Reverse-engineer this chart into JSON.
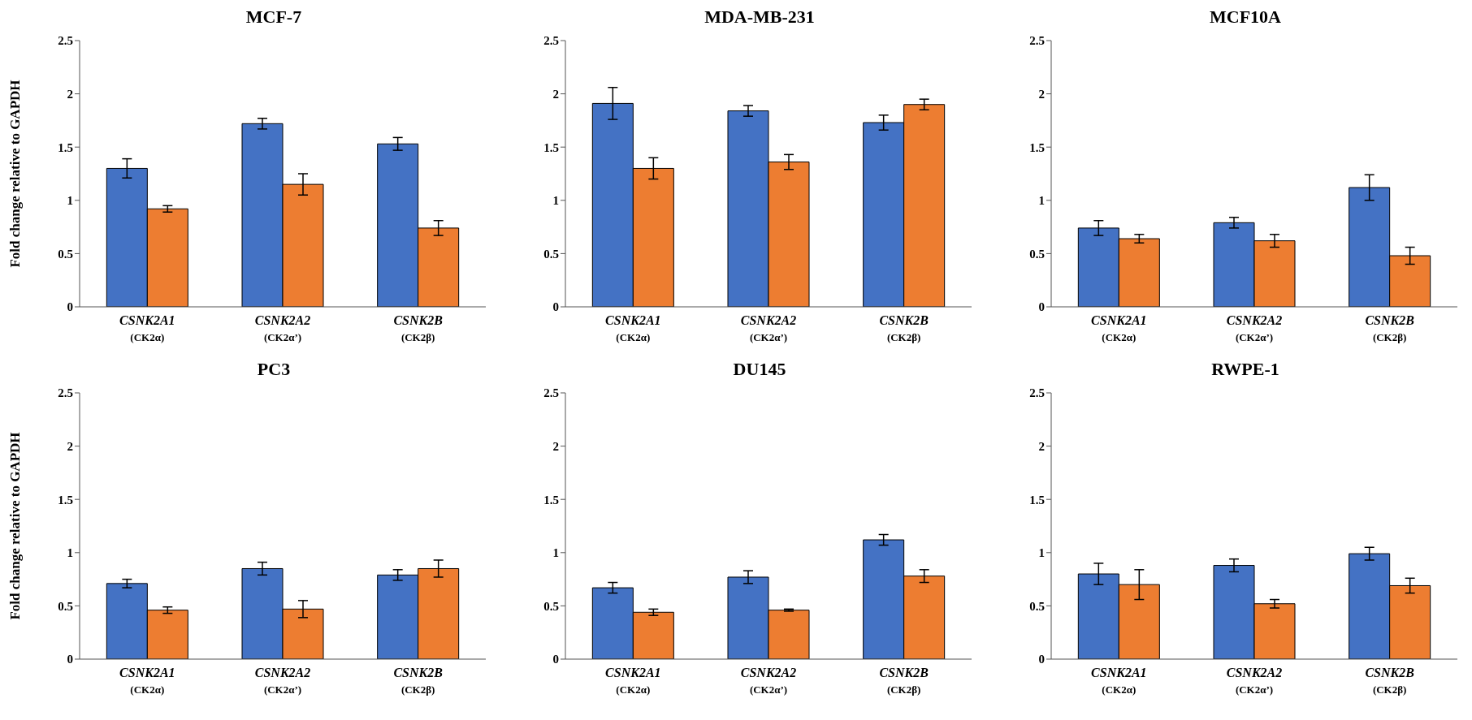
{
  "chart_data": [
    {
      "type": "bar",
      "title": "MCF-7",
      "ylabel": "Fold change relative to GAPDH",
      "categories": [
        "CSNK2A1\n(CK2α)",
        "CSNK2A2\n(CK2α’)",
        "CSNK2B\n(CK2β)"
      ],
      "ylim": [
        0,
        2.5
      ],
      "yticks": [
        0,
        0.5,
        1,
        1.5,
        2,
        2.5
      ],
      "series": [
        {
          "color": "#4472c4",
          "values": [
            1.3,
            1.72,
            1.53
          ],
          "errors": [
            0.09,
            0.05,
            0.06
          ]
        },
        {
          "color": "#ed7d31",
          "values": [
            0.92,
            1.15,
            0.74
          ],
          "errors": [
            0.03,
            0.1,
            0.07
          ]
        }
      ]
    },
    {
      "type": "bar",
      "title": "MDA-MB-231",
      "categories": [
        "CSNK2A1\n(CK2α)",
        "CSNK2A2\n(CK2α’)",
        "CSNK2B\n(CK2β)"
      ],
      "ylim": [
        0,
        2.5
      ],
      "yticks": [
        0,
        0.5,
        1,
        1.5,
        2,
        2.5
      ],
      "series": [
        {
          "color": "#4472c4",
          "values": [
            1.91,
            1.84,
            1.73
          ],
          "errors": [
            0.15,
            0.05,
            0.07
          ]
        },
        {
          "color": "#ed7d31",
          "values": [
            1.3,
            1.36,
            1.9
          ],
          "errors": [
            0.1,
            0.07,
            0.05
          ]
        }
      ]
    },
    {
      "type": "bar",
      "title": "MCF10A",
      "categories": [
        "CSNK2A1\n(CK2α)",
        "CSNK2A2\n(CK2α’)",
        "CSNK2B\n(CK2β)"
      ],
      "ylim": [
        0,
        2.5
      ],
      "yticks": [
        0,
        0.5,
        1,
        1.5,
        2,
        2.5
      ],
      "series": [
        {
          "color": "#4472c4",
          "values": [
            0.74,
            0.79,
            1.12
          ],
          "errors": [
            0.07,
            0.05,
            0.12
          ]
        },
        {
          "color": "#ed7d31",
          "values": [
            0.64,
            0.62,
            0.48
          ],
          "errors": [
            0.04,
            0.06,
            0.08
          ]
        }
      ]
    },
    {
      "type": "bar",
      "title": "PC3",
      "ylabel": "Fold change relative to GAPDH",
      "categories": [
        "CSNK2A1\n(CK2α)",
        "CSNK2A2\n(CK2α’)",
        "CSNK2B\n(CK2β)"
      ],
      "ylim": [
        0,
        2.5
      ],
      "yticks": [
        0,
        0.5,
        1,
        1.5,
        2,
        2.5
      ],
      "series": [
        {
          "color": "#4472c4",
          "values": [
            0.71,
            0.85,
            0.79
          ],
          "errors": [
            0.04,
            0.06,
            0.05
          ]
        },
        {
          "color": "#ed7d31",
          "values": [
            0.46,
            0.47,
            0.85
          ],
          "errors": [
            0.03,
            0.08,
            0.08
          ]
        }
      ]
    },
    {
      "type": "bar",
      "title": "DU145",
      "categories": [
        "CSNK2A1\n(CK2α)",
        "CSNK2A2\n(CK2α’)",
        "CSNK2B\n(CK2β)"
      ],
      "ylim": [
        0,
        2.5
      ],
      "yticks": [
        0,
        0.5,
        1,
        1.5,
        2,
        2.5
      ],
      "series": [
        {
          "color": "#4472c4",
          "values": [
            0.67,
            0.77,
            1.12
          ],
          "errors": [
            0.05,
            0.06,
            0.05
          ]
        },
        {
          "color": "#ed7d31",
          "values": [
            0.44,
            0.46,
            0.78
          ],
          "errors": [
            0.03,
            0.01,
            0.06
          ]
        }
      ]
    },
    {
      "type": "bar",
      "title": "RWPE-1",
      "categories": [
        "CSNK2A1\n(CK2α)",
        "CSNK2A2\n(CK2α’)",
        "CSNK2B\n(CK2β)"
      ],
      "ylim": [
        0,
        2.5
      ],
      "yticks": [
        0,
        0.5,
        1,
        1.5,
        2,
        2.5
      ],
      "series": [
        {
          "color": "#4472c4",
          "values": [
            0.8,
            0.88,
            0.99
          ],
          "errors": [
            0.1,
            0.06,
            0.06
          ]
        },
        {
          "color": "#ed7d31",
          "values": [
            0.7,
            0.52,
            0.69
          ],
          "errors": [
            0.14,
            0.04,
            0.07
          ]
        }
      ]
    }
  ]
}
